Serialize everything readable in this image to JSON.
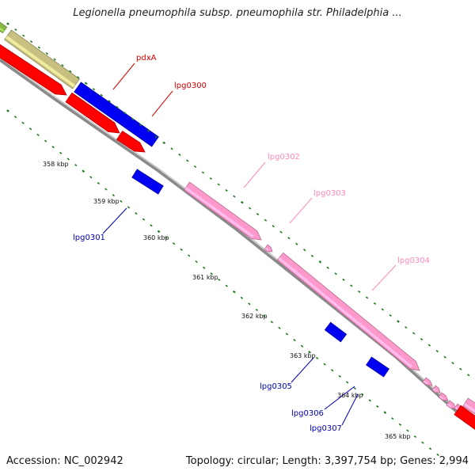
{
  "title": "Legionella pneumophila subsp. pneumophila str. Philadelphia ...",
  "footer": {
    "accession": "Accession: NC_002942",
    "summary": "Topology: circular; Length: 3,397,754 bp; Genes: 2,994"
  },
  "colors": {
    "forward_cds": "#ff0000",
    "reverse_cds": "#0000ee",
    "pink_feature": "#ff99cc",
    "olive_feature": "#c8c080",
    "backbone": "#8a8a8a",
    "tick": "#1f7a1f",
    "forward_label": "#dd0000",
    "reverse_label": "#0000bb",
    "pink_label": "#ff88bb"
  },
  "ticks": [
    "358 kbp",
    "359 kbp",
    "360 kbp",
    "361 kbp",
    "362 kbp",
    "363 kbp",
    "364 kbp",
    "365 kbp"
  ],
  "gene_labels": [
    "pdxA",
    "lpg0300",
    "lpg0301",
    "lpg0302",
    "lpg0303",
    "lpg0304",
    "lpg0305",
    "lpg0306",
    "lpg0307"
  ]
}
